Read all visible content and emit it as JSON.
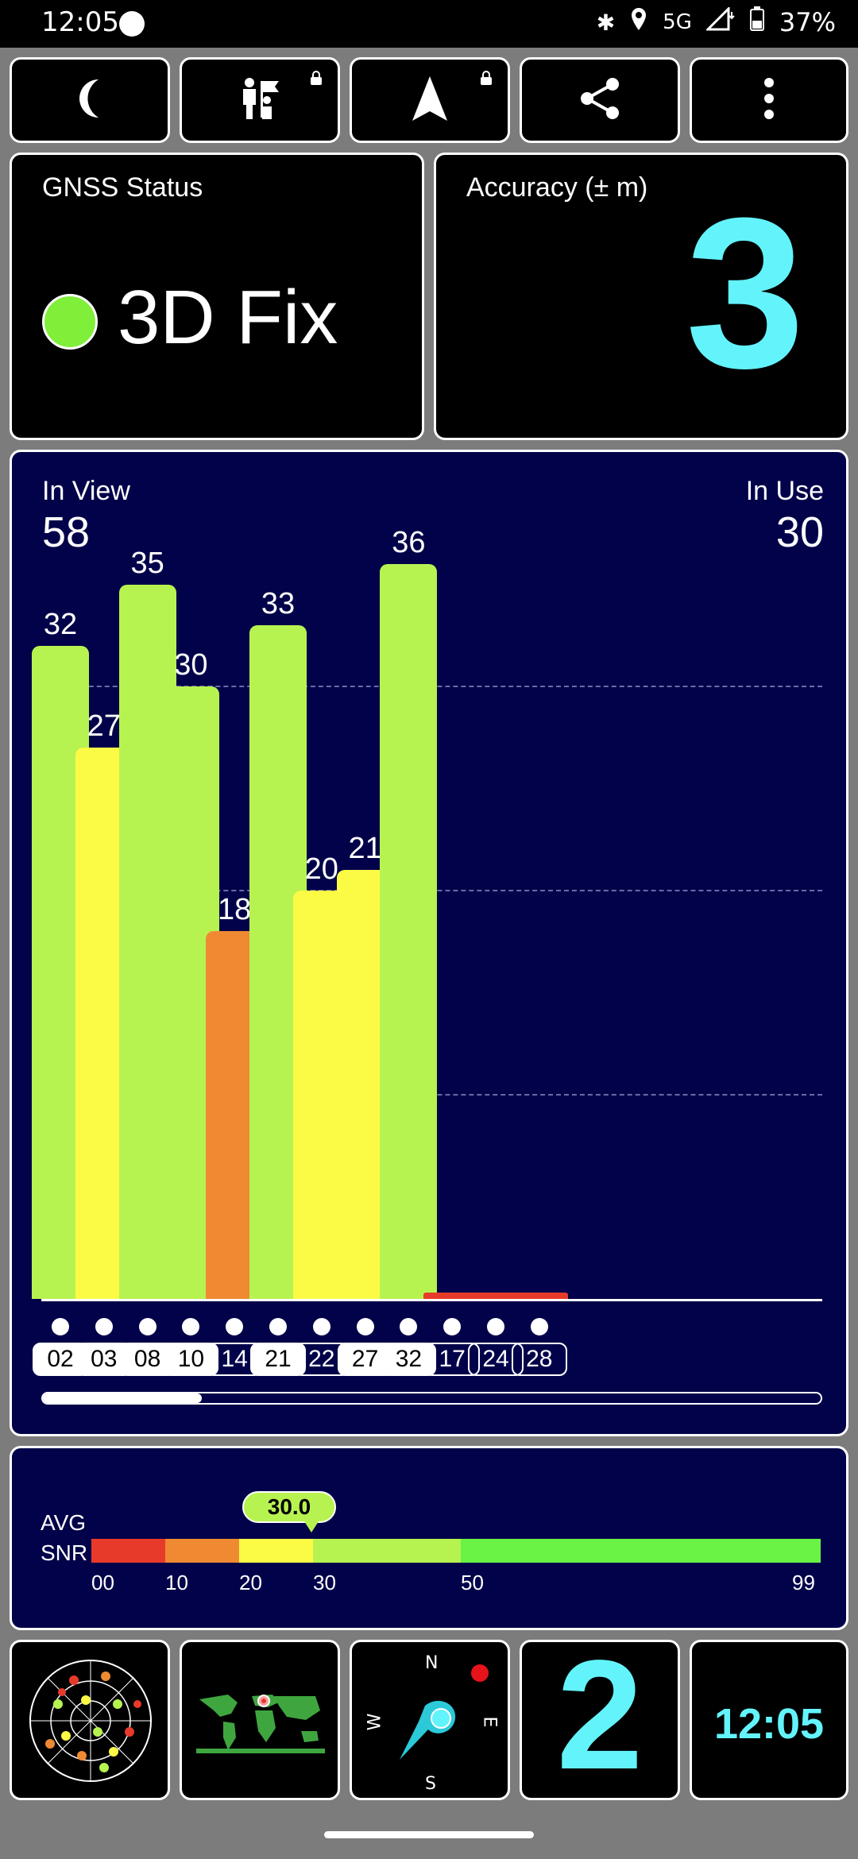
{
  "status_bar": {
    "time": "12:05",
    "network": "5G",
    "battery": "37%",
    "icons": [
      "messenger-icon",
      "bluetooth-icon",
      "location-icon",
      "signal-icon",
      "battery-icon"
    ]
  },
  "toolbar": {
    "buttons": [
      {
        "name": "night-mode",
        "icon": "moon-icon"
      },
      {
        "name": "navigate-to-flag",
        "icon": "person-flag-icon",
        "locked": true
      },
      {
        "name": "navigation",
        "icon": "navigation-arrow-icon",
        "locked": true
      },
      {
        "name": "share",
        "icon": "share-icon"
      },
      {
        "name": "more",
        "icon": "more-vertical-icon"
      }
    ]
  },
  "gnss_status": {
    "label": "GNSS Status",
    "fix": "3D Fix",
    "color": "#7fef3a"
  },
  "accuracy": {
    "label": "Accuracy (± m)",
    "value": "3",
    "color": "#63f3fb"
  },
  "satellites": {
    "in_view_label": "In View",
    "in_view": "58",
    "in_use_label": "In Use",
    "in_use": "30"
  },
  "chart_data": {
    "type": "bar",
    "categories": [
      "02",
      "03",
      "08",
      "10",
      "14",
      "21",
      "22",
      "27",
      "32",
      "17",
      "24",
      "28"
    ],
    "values": [
      32,
      27,
      35,
      30,
      18,
      33,
      20,
      21,
      36,
      0,
      0,
      0
    ],
    "labels_shown": [
      "32",
      "27",
      "35",
      "30",
      "18",
      "33",
      "20",
      "21",
      "36",
      "",
      "",
      ""
    ],
    "used_in_fix": [
      true,
      true,
      true,
      true,
      false,
      true,
      false,
      true,
      true,
      false,
      false,
      false
    ],
    "colors": [
      "#b7f350",
      "#fbfb45",
      "#b7f350",
      "#b7f350",
      "#ef8a33",
      "#b7f350",
      "#fbfb45",
      "#fbfb45",
      "#b7f350",
      "#e83a2a",
      "#e83a2a",
      "#e83a2a"
    ],
    "ylim": [
      0,
      50
    ],
    "grid": true
  },
  "snr": {
    "label_line1": "AVG",
    "label_line2": "SNR",
    "average": "30.0",
    "ticks": [
      "00",
      "10",
      "20",
      "30",
      "50",
      "99"
    ],
    "bands": [
      {
        "from": 0,
        "to": 10,
        "color": "#e83a2a"
      },
      {
        "from": 10,
        "to": 20,
        "color": "#ef8a33"
      },
      {
        "from": 20,
        "to": 30,
        "color": "#fbfb45"
      },
      {
        "from": 30,
        "to": 50,
        "color": "#b7f350"
      },
      {
        "from": 50,
        "to": 99,
        "color": "#6af344"
      }
    ]
  },
  "bottom_tiles": {
    "sky_plot": "sky-plot-icon",
    "world_map": "world-map-icon",
    "compass": {
      "n": "N",
      "e": "E",
      "s": "S",
      "w": "W"
    },
    "big_number": "2",
    "clock": "12:05"
  }
}
